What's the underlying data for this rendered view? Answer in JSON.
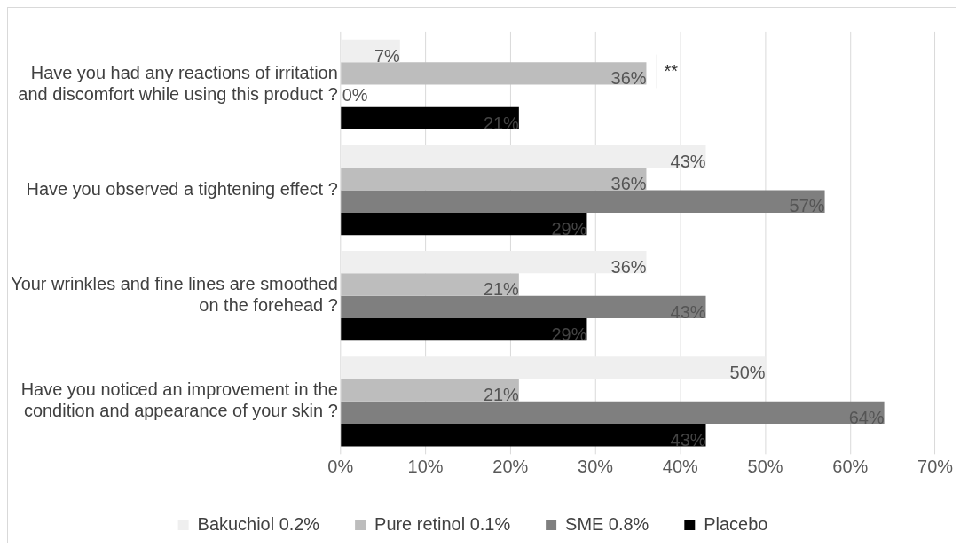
{
  "chart_data": {
    "type": "bar",
    "orientation": "horizontal",
    "categories": [
      "Have you had any reactions of irritation and discomfort while using this product ?",
      "Have you observed a tightening effect ?",
      "Your wrinkles and fine lines are smoothed on the forehead ?",
      "Have you noticed an improvement in the condition and appearance of your skin ?"
    ],
    "series": [
      {
        "name": "Bakuchiol 0.2%",
        "color": "#efefef",
        "values": [
          7,
          43,
          36,
          50
        ],
        "value_labels": [
          "7%",
          "43%",
          "36%",
          "50%"
        ]
      },
      {
        "name": "Pure retinol 0.1%",
        "color": "#bdbdbd",
        "values": [
          36,
          36,
          21,
          21
        ],
        "value_labels": [
          "36%",
          "36%",
          "21%",
          "21%"
        ]
      },
      {
        "name": "SME 0.8%",
        "color": "#7f7f7f",
        "values": [
          0,
          57,
          43,
          64
        ],
        "value_labels": [
          "0%",
          "57%",
          "43%",
          "64%"
        ]
      },
      {
        "name": "Placebo",
        "color": "#000000",
        "values": [
          21,
          29,
          29,
          43
        ],
        "value_labels": [
          "21%",
          "29%",
          "29%",
          "43%"
        ]
      }
    ],
    "xlim": [
      0,
      70
    ],
    "xticks": [
      {
        "value": 0,
        "label": "0%"
      },
      {
        "value": 10,
        "label": "10%"
      },
      {
        "value": 20,
        "label": "20%"
      },
      {
        "value": 30,
        "label": "30%"
      },
      {
        "value": 40,
        "label": "40%"
      },
      {
        "value": 50,
        "label": "50%"
      },
      {
        "value": 60,
        "label": "60%"
      },
      {
        "value": 70,
        "label": "70%"
      }
    ],
    "grid": "x",
    "legend": "bottom",
    "annotations": [
      "**"
    ]
  }
}
